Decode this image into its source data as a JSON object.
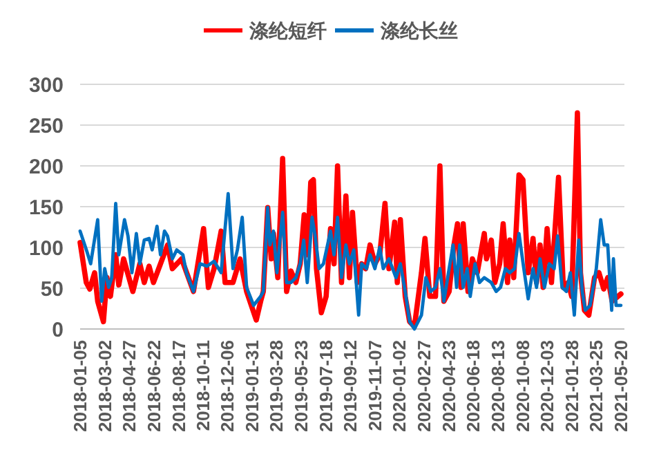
{
  "chart_data": {
    "type": "line",
    "legend": "top",
    "grid": "y",
    "line_style": "solid",
    "marker": "none",
    "xlim": [
      "2018-01-05",
      "2021-05-28"
    ],
    "xticks": [
      "2018-01-05",
      "2018-03-02",
      "2018-04-27",
      "2018-06-22",
      "2018-08-17",
      "2018-10-11",
      "2018-12-06",
      "2019-01-31",
      "2019-03-28",
      "2019-05-23",
      "2019-07-18",
      "2019-09-12",
      "2019-11-07",
      "2020-01-02",
      "2020-02-27",
      "2020-04-23",
      "2020-06-18",
      "2020-08-13",
      "2020-10-08",
      "2020-12-03",
      "2021-01-28",
      "2021-03-25",
      "2021-05-20"
    ],
    "ylim": [
      0,
      300
    ],
    "yticks": [
      0,
      50,
      100,
      150,
      200,
      250,
      300
    ],
    "series": [
      {
        "name": "涤纶短纤",
        "color": "#ff0000",
        "x": [
          "2018-01-05",
          "2018-01-19",
          "2018-01-27",
          "2018-02-07",
          "2018-02-14",
          "2018-02-27",
          "2018-03-07",
          "2018-03-15",
          "2018-03-27",
          "2018-04-03",
          "2018-04-14",
          "2018-05-05",
          "2018-05-21",
          "2018-05-31",
          "2018-06-11",
          "2018-06-21",
          "2018-07-07",
          "2018-07-23",
          "2018-08-03",
          "2018-08-24",
          "2018-09-20",
          "2018-10-13",
          "2018-10-24",
          "2018-11-06",
          "2018-11-22",
          "2018-12-01",
          "2018-12-19",
          "2019-01-04",
          "2019-01-19",
          "2019-02-10",
          "2019-02-20",
          "2019-02-26",
          "2019-03-08",
          "2019-03-16",
          "2019-03-21",
          "2019-03-31",
          "2019-04-11",
          "2019-04-20",
          "2019-04-30",
          "2019-05-11",
          "2019-05-21",
          "2019-05-30",
          "2019-06-06",
          "2019-06-14",
          "2019-06-20",
          "2019-06-27",
          "2019-07-08",
          "2019-07-19",
          "2019-07-29",
          "2019-08-06",
          "2019-08-14",
          "2019-08-23",
          "2019-09-02",
          "2019-09-10",
          "2019-09-17",
          "2019-09-28",
          "2019-10-08",
          "2019-10-17",
          "2019-10-27",
          "2019-11-07",
          "2019-11-18",
          "2019-11-30",
          "2019-12-09",
          "2019-12-22",
          "2019-12-28",
          "2020-01-04",
          "2020-01-15",
          "2020-01-25",
          "2020-02-05",
          "2020-02-21",
          "2020-02-29",
          "2020-03-11",
          "2020-03-24",
          "2020-04-03",
          "2020-04-12",
          "2020-04-24",
          "2020-05-05",
          "2020-05-13",
          "2020-05-21",
          "2020-05-26",
          "2020-06-06",
          "2020-06-16",
          "2020-06-27",
          "2020-07-13",
          "2020-07-18",
          "2020-07-29",
          "2020-08-06",
          "2020-08-17",
          "2020-08-25",
          "2020-09-04",
          "2020-09-09",
          "2020-09-18",
          "2020-09-30",
          "2020-10-09",
          "2020-10-21",
          "2020-11-01",
          "2020-11-09",
          "2020-11-17",
          "2020-11-24",
          "2020-12-03",
          "2020-12-13",
          "2020-12-29",
          "2021-01-09",
          "2021-01-20",
          "2021-01-28",
          "2021-02-10",
          "2021-02-17",
          "2021-02-26",
          "2021-03-08",
          "2021-03-21",
          "2021-03-31",
          "2021-04-11",
          "2021-04-20",
          "2021-04-30",
          "2021-05-20"
        ],
        "values": [
          106,
          57,
          49,
          69,
          34,
          9,
          63,
          40,
          91,
          54,
          86,
          46,
          80,
          57,
          77,
          57,
          80,
          103,
          74,
          86,
          46,
          123,
          51,
          74,
          120,
          57,
          57,
          86,
          46,
          11,
          34,
          46,
          149,
          86,
          117,
          63,
          209,
          46,
          71,
          57,
          80,
          140,
          91,
          180,
          183,
          74,
          20,
          40,
          123,
          80,
          200,
          57,
          163,
          63,
          143,
          57,
          80,
          74,
          103,
          80,
          91,
          154,
          74,
          131,
          57,
          134,
          40,
          9,
          3,
          69,
          111,
          40,
          40,
          200,
          34,
          46,
          103,
          129,
          51,
          129,
          46,
          86,
          69,
          117,
          86,
          109,
          57,
          80,
          129,
          57,
          109,
          63,
          189,
          183,
          69,
          111,
          57,
          103,
          51,
          123,
          57,
          186,
          51,
          57,
          40,
          265,
          69,
          23,
          17,
          63,
          69,
          49,
          63,
          34,
          43
        ]
      },
      {
        "name": "涤纶长丝",
        "color": "#0070c0",
        "x": [
          "2018-01-05",
          "2018-01-21",
          "2018-01-29",
          "2018-02-14",
          "2018-02-23",
          "2018-03-02",
          "2018-03-11",
          "2018-03-18",
          "2018-03-27",
          "2018-04-03",
          "2018-04-16",
          "2018-04-24",
          "2018-05-03",
          "2018-05-13",
          "2018-05-21",
          "2018-05-31",
          "2018-06-11",
          "2018-06-18",
          "2018-06-29",
          "2018-07-07",
          "2018-07-16",
          "2018-07-23",
          "2018-08-03",
          "2018-08-13",
          "2018-08-27",
          "2018-09-04",
          "2018-09-20",
          "2018-10-05",
          "2018-10-21",
          "2018-11-06",
          "2018-11-22",
          "2018-12-08",
          "2018-12-19",
          "2018-12-29",
          "2019-01-09",
          "2019-01-19",
          "2019-02-04",
          "2019-02-20",
          "2019-02-26",
          "2019-03-08",
          "2019-03-13",
          "2019-03-21",
          "2019-03-29",
          "2019-04-11",
          "2019-04-20",
          "2019-04-30",
          "2019-05-11",
          "2019-05-21",
          "2019-05-29",
          "2019-06-06",
          "2019-06-17",
          "2019-06-24",
          "2019-07-03",
          "2019-07-13",
          "2019-07-29",
          "2019-08-06",
          "2019-08-14",
          "2019-08-23",
          "2019-09-02",
          "2019-09-10",
          "2019-09-20",
          "2019-10-01",
          "2019-10-08",
          "2019-10-19",
          "2019-10-27",
          "2019-11-07",
          "2019-11-18",
          "2019-11-26",
          "2019-12-09",
          "2019-12-25",
          "2020-01-04",
          "2020-01-15",
          "2020-01-25",
          "2020-02-05",
          "2020-02-21",
          "2020-03-02",
          "2020-03-13",
          "2020-03-24",
          "2020-04-03",
          "2020-04-12",
          "2020-04-24",
          "2020-05-03",
          "2020-05-11",
          "2020-05-18",
          "2020-05-26",
          "2020-06-04",
          "2020-06-11",
          "2020-06-22",
          "2020-07-02",
          "2020-07-13",
          "2020-07-29",
          "2020-08-09",
          "2020-08-19",
          "2020-08-30",
          "2020-09-09",
          "2020-09-20",
          "2020-09-30",
          "2020-10-11",
          "2020-10-21",
          "2020-11-01",
          "2020-11-09",
          "2020-11-17",
          "2020-11-27",
          "2020-12-08",
          "2020-12-19",
          "2020-12-27",
          "2021-01-06",
          "2021-01-16",
          "2021-01-25",
          "2021-02-03",
          "2021-02-13",
          "2021-02-21",
          "2021-02-28",
          "2021-03-11",
          "2021-03-25",
          "2021-04-04",
          "2021-04-12",
          "2021-04-20",
          "2021-04-29",
          "2021-05-03",
          "2021-05-09",
          "2021-05-20"
        ],
        "values": [
          120,
          94,
          80,
          134,
          34,
          74,
          51,
          63,
          154,
          91,
          134,
          114,
          69,
          117,
          80,
          109,
          111,
          97,
          126,
          91,
          120,
          114,
          86,
          97,
          91,
          69,
          46,
          80,
          77,
          83,
          69,
          166,
          74,
          97,
          137,
          51,
          29,
          40,
          46,
          149,
          103,
          120,
          69,
          143,
          57,
          57,
          63,
          80,
          109,
          57,
          137,
          114,
          74,
          80,
          120,
          91,
          137,
          63,
          103,
          80,
          97,
          17,
          80,
          74,
          91,
          74,
          100,
          74,
          86,
          63,
          80,
          46,
          9,
          0,
          17,
          63,
          46,
          51,
          74,
          34,
          74,
          103,
          51,
          103,
          51,
          74,
          40,
          80,
          57,
          63,
          57,
          46,
          51,
          74,
          69,
          74,
          117,
          74,
          37,
          74,
          51,
          86,
          51,
          80,
          74,
          114,
          51,
          46,
          69,
          17,
          109,
          46,
          23,
          29,
          74,
          134,
          103,
          103,
          23,
          86,
          29,
          29
        ]
      }
    ]
  }
}
